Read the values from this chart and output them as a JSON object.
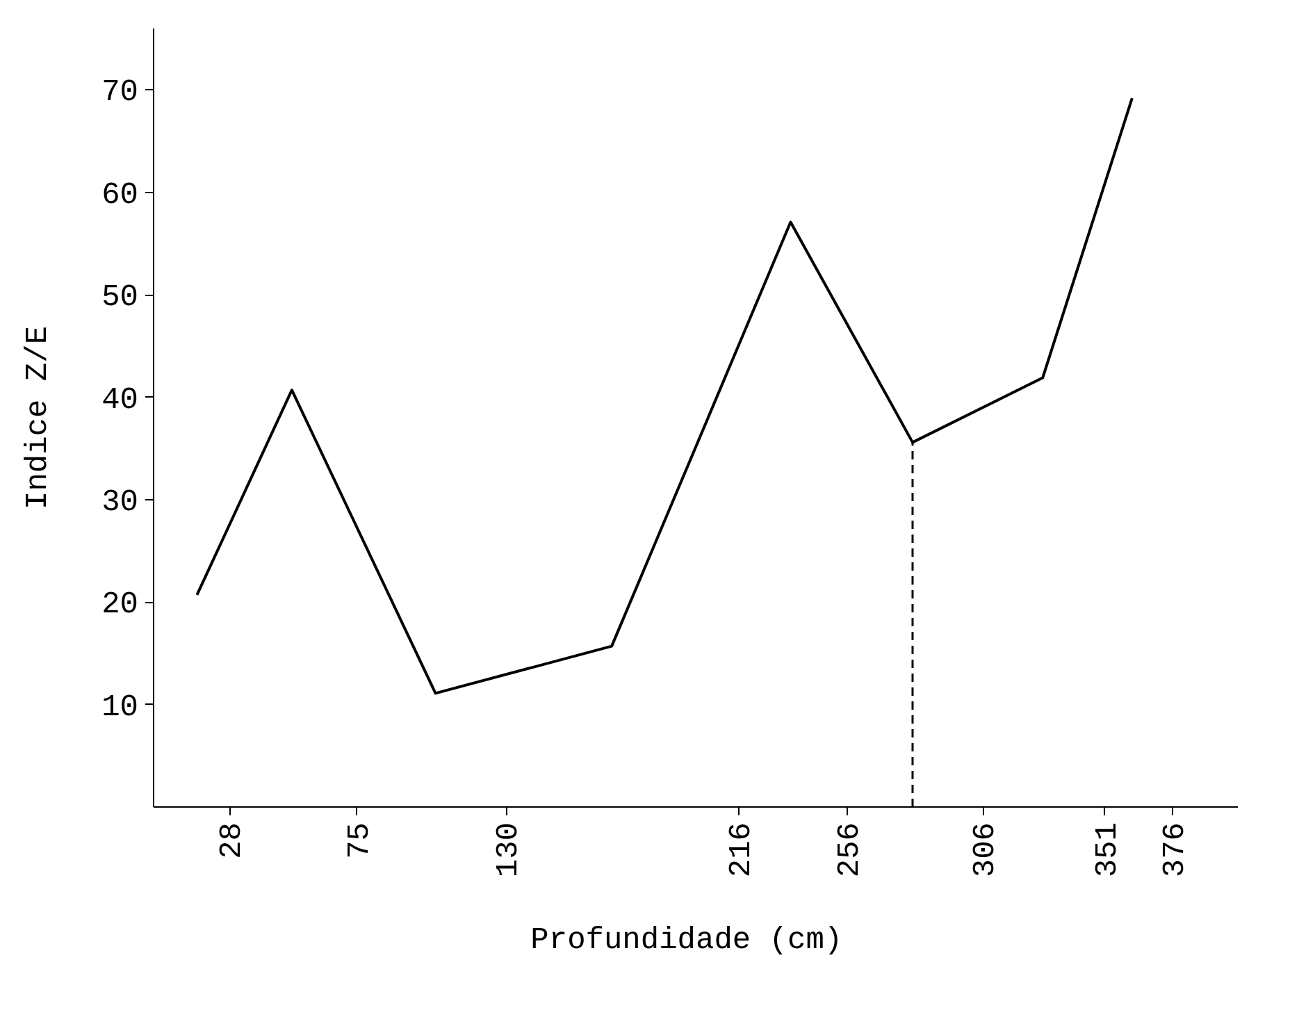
{
  "chart_data": {
    "type": "line",
    "xlabel": "Profundidade  (cm)",
    "ylabel": "Indice Z/E",
    "x": [
      16,
      51,
      104,
      169,
      235,
      280,
      328,
      361
    ],
    "series": [
      {
        "color": "#000000",
        "values": [
          20.7,
          40.7,
          11.1,
          15.7,
          57.1,
          35.6,
          41.9,
          69.2
        ]
      }
    ],
    "xlim": [
      0,
      400
    ],
    "ylim": [
      0,
      76
    ],
    "xticks": [
      28,
      75,
      130,
      216,
      256,
      306,
      351,
      376
    ],
    "yticks": [
      10,
      20,
      30,
      40,
      50,
      60,
      70
    ],
    "ref_lines": [
      {
        "axis": "x",
        "value": 280,
        "label": null,
        "color": "#000000",
        "line_style": "dashed"
      }
    ],
    "grid": false,
    "marker": "none",
    "line_style": "solid"
  }
}
